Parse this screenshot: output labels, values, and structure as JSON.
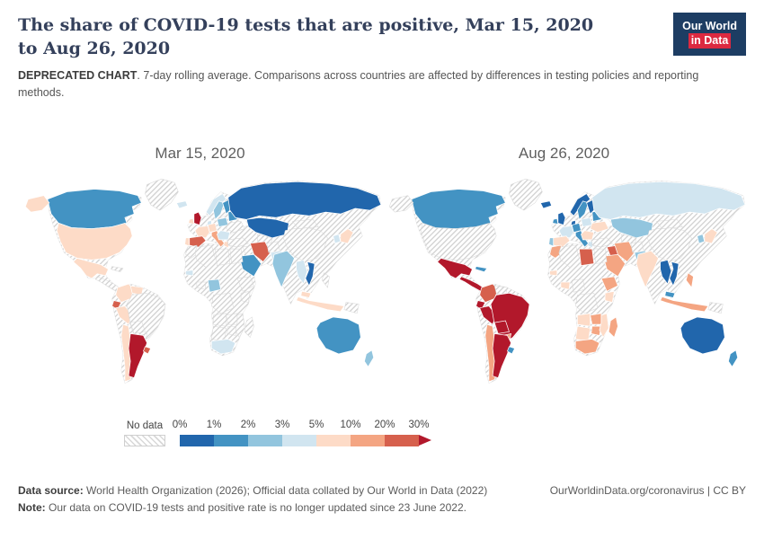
{
  "header": {
    "title": "The share of COVID-19 tests that are positive, Mar 15, 2020 to Aug 26, 2020",
    "logo": {
      "line1": "Our World",
      "line2": "in Data",
      "bg_color": "#1d3d63",
      "accent_color": "#dc2940"
    }
  },
  "subtitle": {
    "bold": "DEPRECATED CHART",
    "rest": ". 7-day rolling average. Comparisons across countries are affected by differences in testing policies and reporting methods."
  },
  "legend": {
    "no_data_label": "No data",
    "tick_labels": [
      "0%",
      "1%",
      "2%",
      "3%",
      "5%",
      "10%",
      "20%",
      "30%"
    ],
    "segment_colors": [
      "#2166ac",
      "#4393c3",
      "#92c5de",
      "#d1e5f0",
      "#fddbc7",
      "#f4a582",
      "#d6604d"
    ],
    "arrow_color": "#b2182b"
  },
  "footer": {
    "source_label": "Data source:",
    "source_text": " World Health Organization (2026); Official data collated by Our World in Data (2022)",
    "credit": "OurWorldinData.org/coronavirus | CC BY",
    "note_label": "Note:",
    "note_text": " Our data on COVID-19 tests and positive rate is no longer updated since 23 June 2022."
  },
  "chart_data": {
    "type": "heatmap",
    "subtype": "choropleth world map (two dates side by side), diverging blue-red scale",
    "title": "The share of COVID-19 tests that are positive",
    "unit": "%",
    "values_estimated_from_colors": true,
    "bucket_thresholds": [
      1,
      2,
      3,
      5,
      10,
      20,
      30
    ],
    "bucket_colors": [
      "#2166ac",
      "#4393c3",
      "#92c5de",
      "#d1e5f0",
      "#fddbc7",
      "#f4a582",
      "#d6604d",
      "#b2182b"
    ],
    "no_data_fill": "gray diagonal hatch",
    "maps": [
      {
        "label": "Mar 15, 2020",
        "values": {
          "greenland": null,
          "canada": 1.5,
          "united_states": 6,
          "mexico": 6,
          "cuba": null,
          "central_america": null,
          "colombia": 6,
          "venezuela": 7,
          "ecuador": 25,
          "peru": 7,
          "brazil": null,
          "bolivia": null,
          "paraguay": null,
          "chile": 6,
          "argentina": 35,
          "uruguay": 20,
          "iceland": 3,
          "united_kingdom": 32,
          "ireland": 6,
          "norway": 3,
          "sweden": 2.5,
          "finland": 1.5,
          "denmark": 4,
          "germany": 5.5,
          "france": 7,
          "spain": 22,
          "portugal": 8,
          "italy": 18,
          "poland": 2,
          "belarus_baltics": 1.5,
          "ukraine": null,
          "romania_balkans": 4,
          "greece": 6,
          "turkey": null,
          "russia": 0.3,
          "kazakhstan": 0.5,
          "central_asia": null,
          "iraq_syria": null,
          "saudi_arabia": 1,
          "iran": 25,
          "afghanistan": null,
          "pakistan": 4,
          "morocco": null,
          "algeria": null,
          "libya": null,
          "egypt": null,
          "senegal": 3,
          "ghana_cote_divoire": null,
          "nigeria": 2,
          "ethiopia": null,
          "kenya": null,
          "dr_congo": null,
          "angola": null,
          "zambia": null,
          "zimbabwe": null,
          "namibia_botswana": null,
          "south_africa": 3,
          "mozambique": null,
          "madagascar": null,
          "china": null,
          "mongolia": null,
          "india": 2,
          "myanmar_thailand": 3,
          "vietnam": 0.5,
          "malaysia": 6,
          "philippines": null,
          "south_korea": 3,
          "japan": 5,
          "indonesia": 8,
          "papua_new_guinea": null,
          "australia": 1.5,
          "new_zealand": 2.5
        }
      },
      {
        "label": "Aug 26, 2020",
        "values": {
          "greenland": null,
          "canada": 1,
          "united_states": null,
          "mexico": 45,
          "cuba": 1,
          "central_america": 30,
          "colombia": 25,
          "venezuela": null,
          "ecuador": 35,
          "peru": 35,
          "brazil": 35,
          "bolivia": 45,
          "paraguay": 12,
          "chile": 12,
          "argentina": 45,
          "uruguay": 1,
          "iceland": 0.5,
          "united_kingdom": 0.5,
          "ireland": 1,
          "norway": 0.5,
          "sweden": 1.5,
          "finland": 0.5,
          "denmark": 0.5,
          "germany": 1,
          "france": 3.5,
          "spain": 8,
          "portugal": 2,
          "italy": 1.5,
          "poland": 3.5,
          "belarus_baltics": 1,
          "ukraine": 8,
          "romania_balkans": 6,
          "greece": 4,
          "turkey": null,
          "russia": 3,
          "kazakhstan": 2,
          "central_asia": null,
          "iraq_syria": 22,
          "saudi_arabia": 12,
          "iran": 10,
          "afghanistan": null,
          "pakistan": 2,
          "morocco": 12,
          "algeria": null,
          "libya": 25,
          "egypt": null,
          "senegal": 8,
          "ghana_cote_divoire": 8,
          "nigeria": null,
          "ethiopia": 12,
          "kenya": 8,
          "dr_congo": null,
          "angola": 8,
          "zambia": 15,
          "zimbabwe": 12,
          "namibia_botswana": 8,
          "south_africa": 10,
          "mozambique": 8,
          "madagascar": 15,
          "china": null,
          "mongolia": null,
          "india": 8,
          "myanmar_thailand": 0.3,
          "vietnam": 0.5,
          "malaysia": 1,
          "philippines": 10,
          "south_korea": 2,
          "japan": 5,
          "indonesia": 14,
          "papua_new_guinea": null,
          "australia": 0.5,
          "new_zealand": 1
        }
      }
    ]
  }
}
